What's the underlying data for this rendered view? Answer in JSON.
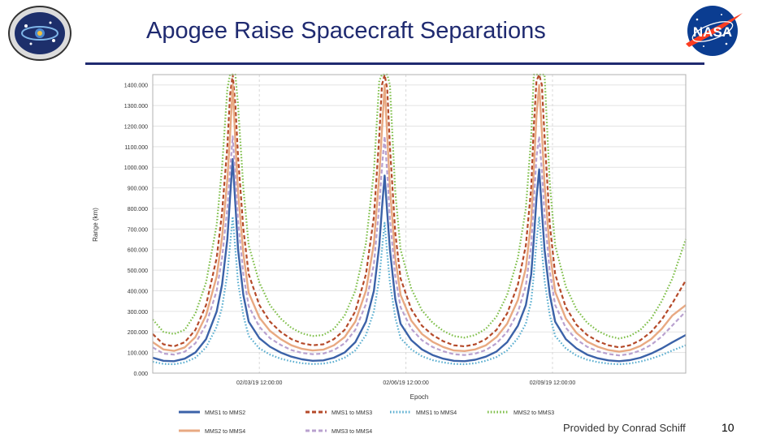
{
  "slide": {
    "title": "Apogee Raise Spacecraft Separations",
    "credit": "Provided by Conrad Schiff",
    "page_number": "10"
  },
  "logos": {
    "mission": "MMS mission emblem",
    "nasa": "NASA"
  },
  "colors": {
    "title": "#1f2a70",
    "MMS1_MMS2": "#3b62a8",
    "MMS1_MMS3": "#b54a2a",
    "MMS1_MMS4": "#5aaed0",
    "MMS2_MMS3": "#7fbf4a",
    "MMS2_MMS4": "#e8a982",
    "MMS3_MMS4": "#b9a1cf"
  },
  "chart_data": {
    "type": "line",
    "title": "",
    "xlabel": "Epoch",
    "ylabel": "Range (km)",
    "ylim": [
      0,
      1450
    ],
    "xlim": [
      0,
      10
    ],
    "grid": true,
    "y_ticks": [
      0,
      100,
      200,
      300,
      400,
      500,
      600,
      700,
      800,
      900,
      1000,
      1100,
      1200,
      1300,
      1400
    ],
    "y_tick_labels": [
      "0.000",
      "100.000",
      "200.000",
      "300.000",
      "400.000",
      "500.000",
      "600.000",
      "700.000",
      "800.000",
      "900.000",
      "1000.000",
      "1100.000",
      "1200.000",
      "1300.000",
      "1400.000"
    ],
    "x_ticks": [
      2.0,
      4.75,
      7.5
    ],
    "x_tick_labels": [
      "02/03/19 12:00:00",
      "02/06/19 12:00:00",
      "02/09/19 12:00:00"
    ],
    "apogee_epochs": [
      1.5,
      4.35,
      7.25
    ],
    "x": [
      0.0,
      0.2,
      0.4,
      0.6,
      0.8,
      1.0,
      1.2,
      1.3,
      1.4,
      1.45,
      1.5,
      1.55,
      1.6,
      1.7,
      1.8,
      2.0,
      2.2,
      2.4,
      2.6,
      2.8,
      3.0,
      3.2,
      3.4,
      3.6,
      3.8,
      4.0,
      4.15,
      4.25,
      4.3,
      4.35,
      4.4,
      4.45,
      4.55,
      4.65,
      4.85,
      5.05,
      5.25,
      5.45,
      5.65,
      5.85,
      6.05,
      6.25,
      6.45,
      6.65,
      6.85,
      7.0,
      7.1,
      7.15,
      7.2,
      7.25,
      7.3,
      7.35,
      7.45,
      7.55,
      7.75,
      7.95,
      8.15,
      8.35,
      8.55,
      8.75,
      8.95,
      9.15,
      9.35,
      9.55,
      9.75,
      10.0
    ],
    "series": [
      {
        "name": "MMS1 to MMS2",
        "style": "solid",
        "values": [
          75,
          60,
          58,
          70,
          100,
          165,
          300,
          430,
          650,
          850,
          1040,
          820,
          600,
          380,
          250,
          170,
          128,
          100,
          80,
          67,
          60,
          62,
          75,
          100,
          150,
          250,
          400,
          620,
          800,
          960,
          780,
          600,
          360,
          240,
          160,
          115,
          88,
          70,
          60,
          58,
          65,
          80,
          105,
          150,
          230,
          330,
          480,
          650,
          850,
          990,
          790,
          600,
          380,
          250,
          165,
          120,
          90,
          72,
          62,
          58,
          63,
          75,
          95,
          120,
          150,
          185
        ]
      },
      {
        "name": "MMS1 to MMS3",
        "style": "dashed",
        "values": [
          190,
          140,
          130,
          150,
          210,
          330,
          560,
          780,
          1100,
          1350,
          1450,
          1300,
          1050,
          700,
          480,
          330,
          250,
          200,
          165,
          145,
          135,
          140,
          165,
          210,
          300,
          480,
          760,
          1150,
          1400,
          1450,
          1380,
          1100,
          680,
          460,
          310,
          230,
          185,
          155,
          135,
          130,
          140,
          165,
          210,
          290,
          430,
          620,
          900,
          1200,
          1420,
          1450,
          1400,
          1150,
          720,
          480,
          320,
          235,
          185,
          155,
          135,
          125,
          135,
          160,
          200,
          260,
          340,
          450
        ]
      },
      {
        "name": "MMS1 to MMS4",
        "style": "dotted",
        "values": [
          55,
          45,
          43,
          52,
          75,
          125,
          225,
          320,
          480,
          620,
          760,
          600,
          440,
          280,
          180,
          120,
          90,
          70,
          57,
          48,
          44,
          46,
          55,
          75,
          110,
          185,
          300,
          460,
          600,
          730,
          580,
          440,
          270,
          170,
          115,
          82,
          63,
          52,
          45,
          43,
          48,
          60,
          78,
          110,
          170,
          240,
          350,
          480,
          640,
          760,
          600,
          450,
          280,
          180,
          120,
          85,
          65,
          53,
          46,
          43,
          47,
          56,
          70,
          88,
          110,
          135
        ]
      },
      {
        "name": "MMS2 to MMS3",
        "style": "dotted",
        "values": [
          260,
          200,
          190,
          210,
          290,
          440,
          720,
          1000,
          1380,
          1450,
          1450,
          1450,
          1300,
          900,
          620,
          440,
          330,
          265,
          220,
          193,
          180,
          185,
          215,
          280,
          400,
          630,
          980,
          1420,
          1450,
          1450,
          1450,
          1400,
          880,
          600,
          410,
          305,
          245,
          205,
          180,
          172,
          185,
          215,
          275,
          380,
          560,
          800,
          1150,
          1450,
          1450,
          1450,
          1450,
          1450,
          920,
          620,
          420,
          310,
          245,
          205,
          180,
          168,
          180,
          210,
          265,
          350,
          460,
          650
        ]
      },
      {
        "name": "MMS2 to MMS4",
        "style": "solid",
        "values": [
          150,
          115,
          108,
          125,
          175,
          280,
          470,
          660,
          940,
          1150,
          1400,
          1120,
          880,
          580,
          390,
          270,
          205,
          165,
          135,
          118,
          110,
          114,
          135,
          175,
          250,
          400,
          630,
          960,
          1180,
          1400,
          1150,
          900,
          560,
          380,
          255,
          190,
          152,
          127,
          110,
          107,
          115,
          135,
          175,
          240,
          355,
          510,
          740,
          990,
          1250,
          1400,
          1170,
          920,
          590,
          395,
          265,
          195,
          153,
          128,
          112,
          104,
          112,
          132,
          165,
          215,
          280,
          330
        ]
      },
      {
        "name": "MMS3 to MMS4",
        "style": "dashed",
        "values": [
          125,
          95,
          90,
          104,
          145,
          235,
          400,
          560,
          800,
          980,
          1150,
          950,
          740,
          480,
          325,
          225,
          170,
          137,
          112,
          98,
          92,
          95,
          112,
          145,
          210,
          335,
          530,
          810,
          1000,
          1150,
          970,
          750,
          470,
          320,
          215,
          160,
          127,
          106,
          92,
          88,
          95,
          112,
          145,
          200,
          295,
          425,
          620,
          830,
          1050,
          1150,
          980,
          770,
          490,
          330,
          220,
          163,
          128,
          106,
          93,
          86,
          93,
          110,
          137,
          178,
          232,
          300
        ]
      }
    ],
    "legend": [
      {
        "label": "MMS1 to MMS2",
        "style": "solid"
      },
      {
        "label": "MMS1 to MMS3",
        "style": "dashed"
      },
      {
        "label": "MMS1 to MMS4",
        "style": "dotted"
      },
      {
        "label": "MMS2 to MMS3",
        "style": "dotted"
      },
      {
        "label": "MMS2 to MMS4",
        "style": "solid"
      },
      {
        "label": "MMS3 to MMS4",
        "style": "dashed"
      }
    ],
    "legend_position": "bottom"
  }
}
